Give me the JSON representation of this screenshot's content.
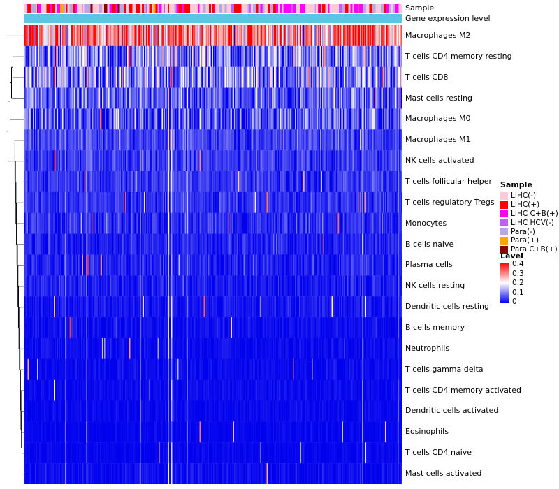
{
  "annotations": {
    "sample_label": "Sample",
    "expression_label": "Gene expression level"
  },
  "chart_data": {
    "type": "heatmap",
    "title": "",
    "xlabel": "",
    "ylabel": "",
    "n_columns": 360,
    "legend_position": "right",
    "grid": false,
    "colorscale": {
      "min": 0,
      "mid": 0.2,
      "max": 0.4,
      "low": "#0000EE",
      "mid_color": "#FFFFFF",
      "high": "#FF0000"
    },
    "row_annotation_bar": {
      "name": "Gene expression level",
      "color": "#57C7E3"
    },
    "column_annotation": {
      "name": "Sample",
      "categories": [
        {
          "label": "LIHC(-)",
          "color": "#FFC9D9",
          "weight": 0.4
        },
        {
          "label": "LIHC(+)",
          "color": "#FF0000",
          "weight": 0.17
        },
        {
          "label": "LIHC C+B(+)",
          "color": "#FF00FF",
          "weight": 0.15
        },
        {
          "label": "LIHC HCV(-)",
          "color": "#BF5FFF",
          "weight": 0.04
        },
        {
          "label": "Para(-)",
          "color": "#B9A6E2",
          "weight": 0.18
        },
        {
          "label": "Para(+)",
          "color": "#FFA500",
          "weight": 0.04
        },
        {
          "label": "Para C+B(+)",
          "color": "#8B0000",
          "weight": 0.02
        }
      ]
    },
    "rows": [
      {
        "label": "Macrophages M2",
        "mean": 0.285,
        "sd": 0.095
      },
      {
        "label": "T cells CD4 memory resting",
        "mean": 0.105,
        "sd": 0.075
      },
      {
        "label": "T cells CD8",
        "mean": 0.1,
        "sd": 0.085
      },
      {
        "label": "Mast cells resting",
        "mean": 0.072,
        "sd": 0.05
      },
      {
        "label": "Macrophages M0",
        "mean": 0.062,
        "sd": 0.06
      },
      {
        "label": "Macrophages M1",
        "mean": 0.052,
        "sd": 0.028
      },
      {
        "label": "NK cells activated",
        "mean": 0.046,
        "sd": 0.026
      },
      {
        "label": "T cells follicular helper",
        "mean": 0.042,
        "sd": 0.024
      },
      {
        "label": "T cells regulatory Tregs",
        "mean": 0.038,
        "sd": 0.022
      },
      {
        "label": "Monocytes",
        "mean": 0.032,
        "sd": 0.026
      },
      {
        "label": "B cells naive",
        "mean": 0.027,
        "sd": 0.02
      },
      {
        "label": "Plasma cells",
        "mean": 0.025,
        "sd": 0.022
      },
      {
        "label": "NK cells resting",
        "mean": 0.02,
        "sd": 0.018
      },
      {
        "label": "Dendritic cells resting",
        "mean": 0.016,
        "sd": 0.014
      },
      {
        "label": "B cells memory",
        "mean": 0.011,
        "sd": 0.011
      },
      {
        "label": "Neutrophils",
        "mean": 0.009,
        "sd": 0.01
      },
      {
        "label": "T cells gamma delta",
        "mean": 0.008,
        "sd": 0.009
      },
      {
        "label": "T cells CD4 memory activated",
        "mean": 0.007,
        "sd": 0.008
      },
      {
        "label": "Dendritic cells activated",
        "mean": 0.006,
        "sd": 0.008
      },
      {
        "label": "Eosinophils",
        "mean": 0.004,
        "sd": 0.006
      },
      {
        "label": "T cells CD4 naive",
        "mean": 0.004,
        "sd": 0.006
      },
      {
        "label": "Mast cells activated",
        "mean": 0.008,
        "sd": 0.012
      }
    ]
  },
  "legends": {
    "sample": {
      "title": "Sample",
      "items": [
        {
          "label": "LIHC(-)",
          "color": "#FFC9D9"
        },
        {
          "label": "LIHC(+)",
          "color": "#FF0000"
        },
        {
          "label": "LIHC C+B(+)",
          "color": "#FF00FF"
        },
        {
          "label": "LIHC HCV(-)",
          "color": "#BF5FFF"
        },
        {
          "label": "Para(-)",
          "color": "#B9A6E2"
        },
        {
          "label": "Para(+)",
          "color": "#FFA500"
        },
        {
          "label": "Para C+B(+)",
          "color": "#8B0000"
        }
      ]
    },
    "level": {
      "title": "Level",
      "ticks": [
        "0.4",
        "0.3",
        "0.2",
        "0.1",
        "0"
      ],
      "gradient_high": "#FF0000",
      "gradient_mid": "#FFFFFF",
      "gradient_low": "#0000EE"
    }
  }
}
